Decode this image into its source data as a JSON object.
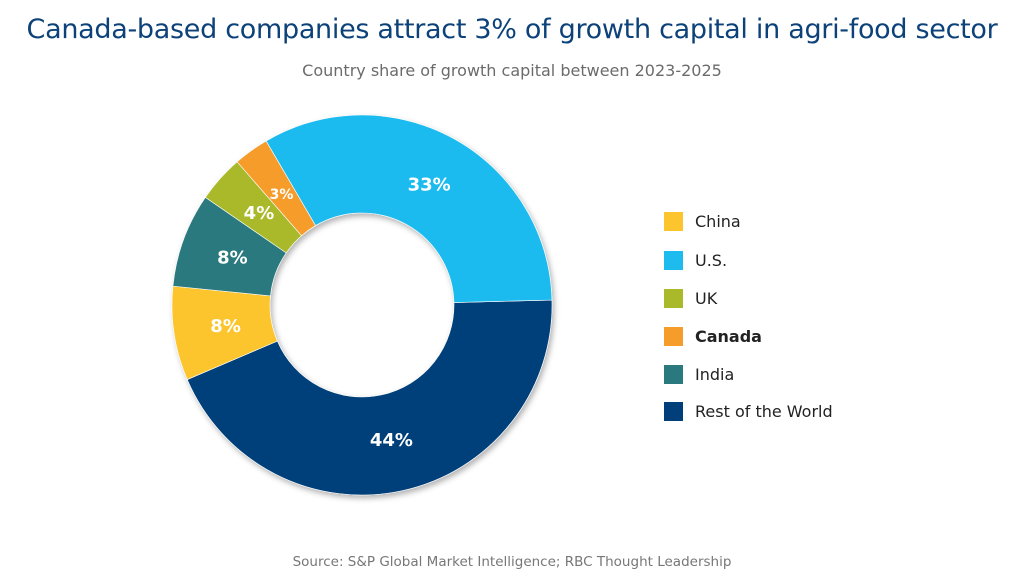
{
  "chart_data": {
    "type": "pie",
    "variant": "donut",
    "title": "Canada-based companies attract 3% of growth capital in agri-food sector",
    "subtitle": "Country share of growth capital between 2023-2025",
    "source": "Source: S&P Global Market Intelligence; RBC Thought Leadership",
    "slices": [
      {
        "name": "Rest of the World",
        "value": 44,
        "label": "44%",
        "color": "#003f7a"
      },
      {
        "name": "China",
        "value": 8,
        "label": "8%",
        "color": "#fcc52e"
      },
      {
        "name": "India",
        "value": 8,
        "label": "8%",
        "color": "#2a797e"
      },
      {
        "name": "UK",
        "value": 4,
        "label": "4%",
        "color": "#a9b92a"
      },
      {
        "name": "Canada",
        "value": 3,
        "label": "3%",
        "color": "#f59c2a"
      },
      {
        "name": "U.S.",
        "value": 33,
        "label": "33%",
        "color": "#1ebbef"
      }
    ],
    "legend": {
      "placement": "right",
      "entries": [
        {
          "name": "China",
          "color": "#fcc52e",
          "bold": false
        },
        {
          "name": "U.S.",
          "color": "#1ebbef",
          "bold": false
        },
        {
          "name": "UK",
          "color": "#a9b92a",
          "bold": false
        },
        {
          "name": "Canada",
          "color": "#f59c2a",
          "bold": true
        },
        {
          "name": "India",
          "color": "#2a797e",
          "bold": false
        },
        {
          "name": "Rest of the World",
          "color": "#003f7a",
          "bold": false
        }
      ]
    }
  }
}
